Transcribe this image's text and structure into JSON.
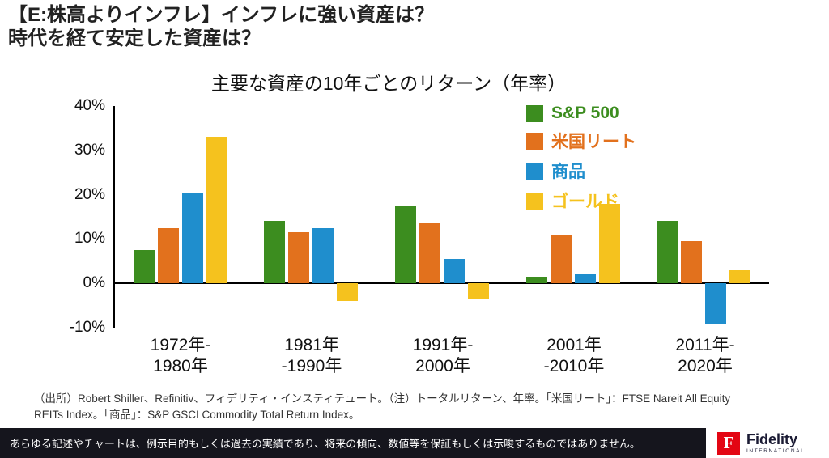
{
  "header": {
    "line1": "【E:株高よりインフレ】インフレに強い資産は？",
    "line2": "時代を経て安定した資産は？"
  },
  "chart_data": {
    "type": "bar",
    "title": "主要な資産の10年ごとのリターン（年率）",
    "categories": [
      "1972年-1980年",
      "1981年-1990年",
      "1991年-2000年",
      "2001年-2010年",
      "2011年-2020年"
    ],
    "category_lines": [
      [
        "1972年-",
        "1980年"
      ],
      [
        "1981年",
        "-1990年"
      ],
      [
        "1991年-",
        "2000年"
      ],
      [
        "2001年",
        "-2010年"
      ],
      [
        "2011年-",
        "2020年"
      ]
    ],
    "series": [
      {
        "name": "S&P 500",
        "color": "#3c8d1f",
        "values": [
          7.5,
          14,
          17.5,
          1.5,
          14
        ]
      },
      {
        "name": "米国リート",
        "color": "#e2711d",
        "values": [
          12.5,
          11.5,
          13.5,
          11,
          9.5
        ]
      },
      {
        "name": "商品",
        "color": "#1f8ecd",
        "values": [
          20.5,
          12.5,
          5.5,
          2,
          -9
        ]
      },
      {
        "name": "ゴールド",
        "color": "#f5c21e",
        "values": [
          33,
          -4,
          -3.5,
          18,
          3
        ]
      }
    ],
    "ylim": [
      -10,
      40
    ],
    "yticks": [
      40,
      30,
      20,
      10,
      0,
      -10
    ],
    "ytick_labels": [
      "40%",
      "30%",
      "20%",
      "10%",
      "0%",
      "-10%"
    ],
    "grid": false,
    "legend_position": "top-right"
  },
  "footnote": {
    "line1": "（出所）Robert Shiller、Refinitiv、フィデリティ・インスティテュート。（注）トータルリターン、年率。「米国リート」：FTSE Nareit All Equity",
    "line2": "REITs Index。「商品」：S&P GSCI Commodity Total Return Index。"
  },
  "disclaimer": "あらゆる記述やチャートは、例示目的もしくは過去の実績であり、将来の傾向、数値等を保証もしくは示唆するものではありません。",
  "logo": {
    "letter": "F",
    "brand": "Fidelity",
    "sub": "INTERNATIONAL"
  }
}
